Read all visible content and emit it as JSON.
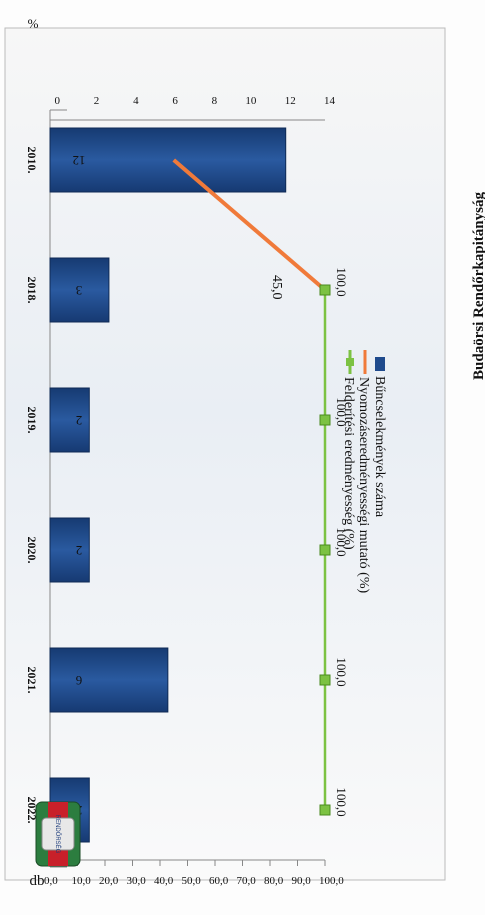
{
  "header": {
    "title_fragment": "Budaörsi Rendőrkapitányság"
  },
  "logo": {
    "label": "RENDŐRSÉG"
  },
  "chart_data": {
    "type": "bar",
    "categories": [
      "2010.",
      "2018.",
      "2019.",
      "2020.",
      "2021.",
      "2022."
    ],
    "series": [
      {
        "name": "Bűncselekmények száma",
        "type": "bar",
        "axis": "left",
        "values": [
          12,
          3,
          2,
          2,
          6,
          2
        ],
        "value_labels": [
          "12",
          "3",
          "2",
          "2",
          "6",
          "2"
        ],
        "color": "#1f4a8c"
      },
      {
        "name": "Nyomozáseredményességi mutató (%)",
        "type": "line",
        "axis": "right",
        "values": [
          45.0,
          100.0,
          null,
          null,
          null,
          null
        ],
        "color": "#f07a3a"
      },
      {
        "name": "Felderítési eredményesség (%)",
        "type": "line",
        "axis": "right",
        "values": [
          null,
          100.0,
          100.0,
          100.0,
          100.0,
          100.0
        ],
        "value_labels": [
          "",
          "100,0",
          "100,0",
          "100,0",
          "100,0",
          "100,0"
        ],
        "color": "#7cc242"
      }
    ],
    "start_label": "45,0",
    "left_axis": {
      "label": "db",
      "ylim": [
        0,
        14
      ],
      "ticks": [
        "0",
        "2",
        "4",
        "6",
        "8",
        "10",
        "12",
        "14"
      ]
    },
    "right_axis": {
      "label": "%",
      "ylim": [
        0,
        100
      ],
      "ticks": [
        "0,0",
        "10,0",
        "20,0",
        "30,0",
        "40,0",
        "50,0",
        "60,0",
        "70,0",
        "80,0",
        "90,0",
        "100,0"
      ]
    },
    "legend_position": "top",
    "grid": false
  }
}
